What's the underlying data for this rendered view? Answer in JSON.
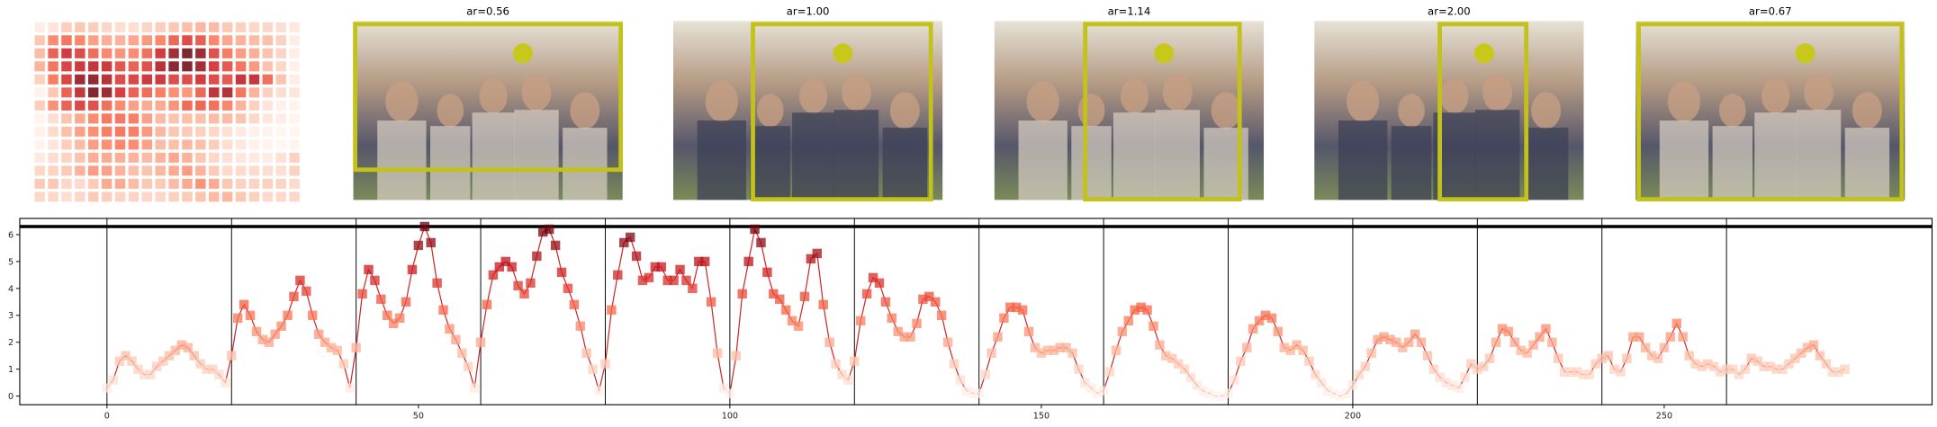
{
  "panels": [
    {
      "title": "ar=0.56"
    },
    {
      "title": "ar=1.00"
    },
    {
      "title": "ar=1.14"
    },
    {
      "title": "ar=2.00"
    },
    {
      "title": "ar=0.67"
    }
  ],
  "chart_data": {
    "type": "line",
    "x_start": 0,
    "segment_length": 20,
    "values": [
      0.3,
      0.6,
      1.3,
      1.5,
      1.3,
      1.0,
      0.8,
      0.8,
      1.1,
      1.3,
      1.5,
      1.7,
      1.9,
      1.8,
      1.5,
      1.2,
      1.0,
      1.0,
      0.8,
      0.5,
      1.5,
      2.9,
      3.4,
      3.0,
      2.4,
      2.1,
      2.0,
      2.3,
      2.6,
      3.0,
      3.7,
      4.3,
      3.9,
      3.0,
      2.3,
      2.0,
      1.8,
      1.7,
      1.2,
      0.3,
      1.8,
      3.8,
      4.7,
      4.3,
      3.6,
      3.0,
      2.7,
      2.9,
      3.5,
      4.7,
      5.6,
      6.3,
      5.7,
      4.2,
      3.2,
      2.5,
      2.1,
      1.6,
      1.1,
      0.3,
      2.0,
      3.4,
      4.5,
      4.8,
      5.0,
      4.8,
      4.1,
      3.8,
      4.2,
      5.2,
      6.1,
      6.2,
      5.6,
      4.6,
      4.0,
      3.4,
      2.6,
      1.6,
      1.0,
      0.2,
      1.2,
      3.2,
      4.5,
      5.7,
      5.9,
      5.2,
      4.3,
      4.4,
      4.8,
      4.8,
      4.3,
      4.3,
      4.7,
      4.3,
      4.0,
      5.0,
      5.0,
      3.5,
      1.6,
      0.3,
      0.1,
      1.5,
      3.8,
      5.0,
      6.2,
      5.7,
      4.6,
      3.8,
      3.6,
      3.2,
      2.8,
      2.6,
      3.7,
      5.1,
      5.3,
      3.4,
      2.0,
      1.2,
      0.8,
      0.6,
      1.3,
      2.8,
      3.8,
      4.4,
      4.2,
      3.5,
      2.9,
      2.4,
      2.2,
      2.2,
      2.7,
      3.6,
      3.7,
      3.5,
      3.0,
      2.0,
      1.2,
      0.6,
      0.2,
      0.1,
      0.1,
      0.8,
      1.6,
      2.2,
      2.9,
      3.3,
      3.3,
      3.2,
      2.4,
      1.8,
      1.6,
      1.7,
      1.7,
      1.8,
      1.8,
      1.6,
      1.0,
      0.5,
      0.3,
      0.1,
      0.2,
      0.9,
      1.7,
      2.4,
      2.8,
      3.2,
      3.3,
      3.2,
      2.6,
      1.9,
      1.5,
      1.4,
      1.2,
      1.0,
      0.7,
      0.4,
      0.2,
      0.1,
      0.0,
      0.0,
      0.1,
      0.6,
      1.3,
      1.8,
      2.5,
      2.8,
      3.0,
      2.9,
      2.4,
      1.8,
      1.7,
      1.9,
      1.7,
      1.3,
      0.8,
      0.5,
      0.2,
      0.1,
      0.0,
      0.1,
      0.4,
      0.8,
      1.1,
      1.6,
      2.1,
      2.2,
      2.1,
      2.0,
      1.8,
      2.0,
      2.3,
      2.0,
      1.5,
      1.0,
      0.7,
      0.5,
      0.4,
      0.3,
      0.7,
      1.2,
      1.0,
      1.1,
      1.4,
      2.0,
      2.5,
      2.4,
      2.0,
      1.7,
      1.6,
      1.9,
      2.2,
      2.5,
      2.0,
      1.4,
      0.9,
      0.9,
      0.9,
      0.8,
      0.8,
      1.2,
      1.4,
      1.5,
      1.0,
      0.9,
      1.4,
      2.2,
      2.2,
      1.8,
      1.5,
      1.4,
      1.8,
      2.2,
      2.7,
      2.2,
      1.5,
      1.2,
      1.1,
      1.2,
      1.1,
      0.9,
      1.0,
      1.0,
      0.8,
      1.0,
      1.4,
      1.3,
      1.1,
      1.1,
      1.0,
      1.0,
      1.2,
      1.4,
      1.6,
      1.8,
      1.9,
      1.5,
      1.2,
      0.9,
      0.9,
      1.0
    ],
    "line_color": "#cc2a2a",
    "cmap": [
      "#fff5f0",
      "#fcbba1",
      "#fb6a4a",
      "#cb181d",
      "#67000d"
    ],
    "hline": 6.3,
    "xlim": [
      -14,
      293
    ],
    "ylim": [
      -0.32,
      6.6
    ],
    "xticks": [
      0,
      50,
      100,
      150,
      200,
      250
    ],
    "yticks": [
      0,
      1,
      2,
      3,
      4,
      5,
      6
    ]
  }
}
